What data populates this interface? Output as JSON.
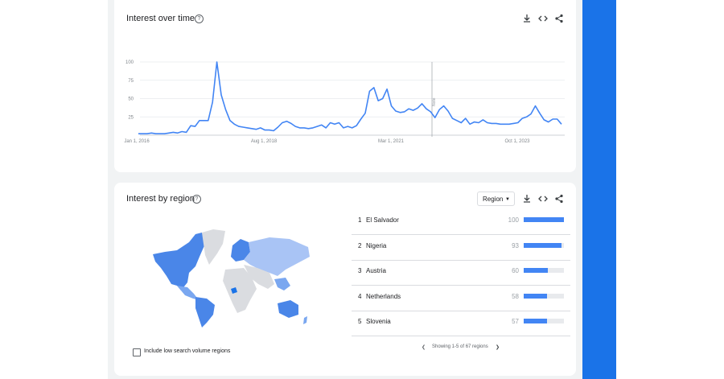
{
  "interest_over_time": {
    "title": "Interest over time",
    "icons": [
      "help-icon",
      "download-icon",
      "embed-icon",
      "share-icon"
    ],
    "chart_data": {
      "type": "line",
      "x_tick_labels": [
        "Jan 1, 2016",
        "Aug 1, 2018",
        "Mar 1, 2021",
        "Oct 1, 2023"
      ],
      "y_tick_labels": [
        "100",
        "75",
        "50",
        "25"
      ],
      "ylim": [
        0,
        100
      ],
      "grid": true,
      "line_color": "#4285f4",
      "annotation": "Note",
      "values": [
        2,
        2,
        2,
        3,
        2,
        2,
        2,
        3,
        4,
        3,
        5,
        4,
        13,
        12,
        20,
        20,
        20,
        45,
        100,
        55,
        35,
        20,
        15,
        12,
        11,
        10,
        9,
        8,
        10,
        7,
        7,
        6,
        11,
        17,
        19,
        16,
        12,
        10,
        10,
        9,
        10,
        12,
        14,
        10,
        17,
        15,
        17,
        10,
        12,
        10,
        13,
        22,
        30,
        60,
        65,
        47,
        50,
        63,
        40,
        33,
        31,
        32,
        36,
        34,
        37,
        43,
        36,
        32,
        24,
        35,
        40,
        33,
        23,
        20,
        17,
        23,
        15,
        18,
        17,
        21,
        17,
        16,
        16,
        15,
        15,
        15,
        16,
        17,
        23,
        25,
        29,
        40,
        30,
        21,
        18,
        22,
        22,
        15
      ]
    }
  },
  "interest_by_region": {
    "title": "Interest by region",
    "dropdown": {
      "selected": "Region"
    },
    "icons": [
      "help-icon",
      "download-icon",
      "embed-icon",
      "share-icon"
    ],
    "regions": [
      {
        "rank": "1",
        "name": "El Salvador",
        "value": 100
      },
      {
        "rank": "2",
        "name": "Nigeria",
        "value": 93
      },
      {
        "rank": "3",
        "name": "Austria",
        "value": 60
      },
      {
        "rank": "4",
        "name": "Netherlands",
        "value": 58
      },
      {
        "rank": "5",
        "name": "Slovenia",
        "value": 57
      }
    ],
    "checkbox_label": "Include low search volume regions",
    "pager_text": "Showing 1-5 of 67 regions",
    "map_colors": {
      "high": "#4a86e8",
      "mid": "#7aa7f0",
      "low": "#a9c4f5",
      "none": "#dadce0"
    }
  }
}
